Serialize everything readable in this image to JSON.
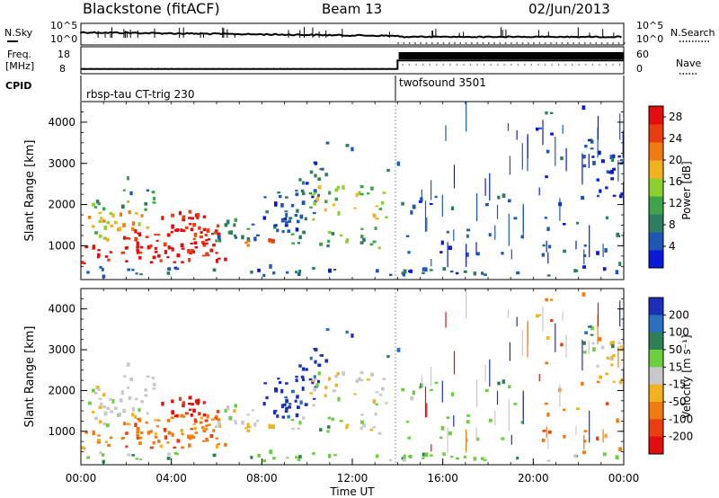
{
  "header": {
    "station": "Blackstone (fitACF)",
    "beam": "Beam 13",
    "date": "02/Jun/2013"
  },
  "colors": {
    "power_scale": [
      "#0a18d8",
      "#1f57b5",
      "#2e7d62",
      "#3ea34a",
      "#8ccf2e",
      "#f2b21f",
      "#f07b12",
      "#ea3d10",
      "#e20d0d"
    ],
    "velocity_scale": [
      "#1c2fb8",
      "#2a6fc0",
      "#2f7f55",
      "#6ccd3d",
      "#c8c8c8",
      "#f2b21f",
      "#f07b12",
      "#ea3d10",
      "#e20d0d"
    ]
  },
  "chart_data": [
    {
      "type": "line",
      "panel": "noise",
      "left_label": "N.Sky",
      "right_label": "N.Search",
      "left_ticks": [
        "10^5",
        "10^0"
      ],
      "right_ticks": [
        "10^5",
        "10^0"
      ]
    },
    {
      "type": "line",
      "panel": "frequency",
      "left_label": "Freq.",
      "left_unit": "[MHz]",
      "right_label": "Nave",
      "left_ticks": [
        "18",
        "8"
      ],
      "right_ticks": [
        "60",
        "0"
      ],
      "series": [
        {
          "x": [
            "00:00",
            "14:00"
          ],
          "values": [
            10,
            10
          ]
        },
        {
          "x": [
            "14:00",
            "24:00"
          ],
          "values": [
            16,
            16
          ]
        }
      ]
    },
    {
      "type": "table",
      "panel": "cpid",
      "label": "CPID",
      "segments": [
        {
          "start": "00:00",
          "end": "14:00",
          "name": "rbsp-tau CT-trig 230"
        },
        {
          "start": "14:00",
          "end": "24:00",
          "name": "twofsound 3501"
        }
      ]
    },
    {
      "type": "heatmap",
      "panel": "power",
      "ylabel": "Slant Range [km]",
      "ylim": [
        180,
        4500
      ],
      "yticks": [
        "1000",
        "2000",
        "3000",
        "4000"
      ],
      "xlim": [
        "00:00",
        "24:00"
      ],
      "colorbar_label": "Power [dB]",
      "colorbar_ticks": [
        "4",
        "8",
        "12",
        "16",
        "20",
        "24",
        "28"
      ],
      "colorbar_range": [
        0,
        30
      ]
    },
    {
      "type": "heatmap",
      "panel": "velocity",
      "ylabel": "Slant Range [km]",
      "ylim": [
        180,
        4500
      ],
      "yticks": [
        "1000",
        "2000",
        "3000",
        "4000"
      ],
      "xlim": [
        "00:00",
        "24:00"
      ],
      "xticks": [
        "00:00",
        "04:00",
        "08:00",
        "12:00",
        "16:00",
        "20:00",
        "00:00"
      ],
      "xlabel": "Time UT",
      "colorbar_label": "Velocity [m s⁻¹]",
      "colorbar_ticks": [
        "200",
        "100",
        "50",
        "15",
        "-15",
        "-50",
        "-100",
        "-200"
      ]
    }
  ]
}
